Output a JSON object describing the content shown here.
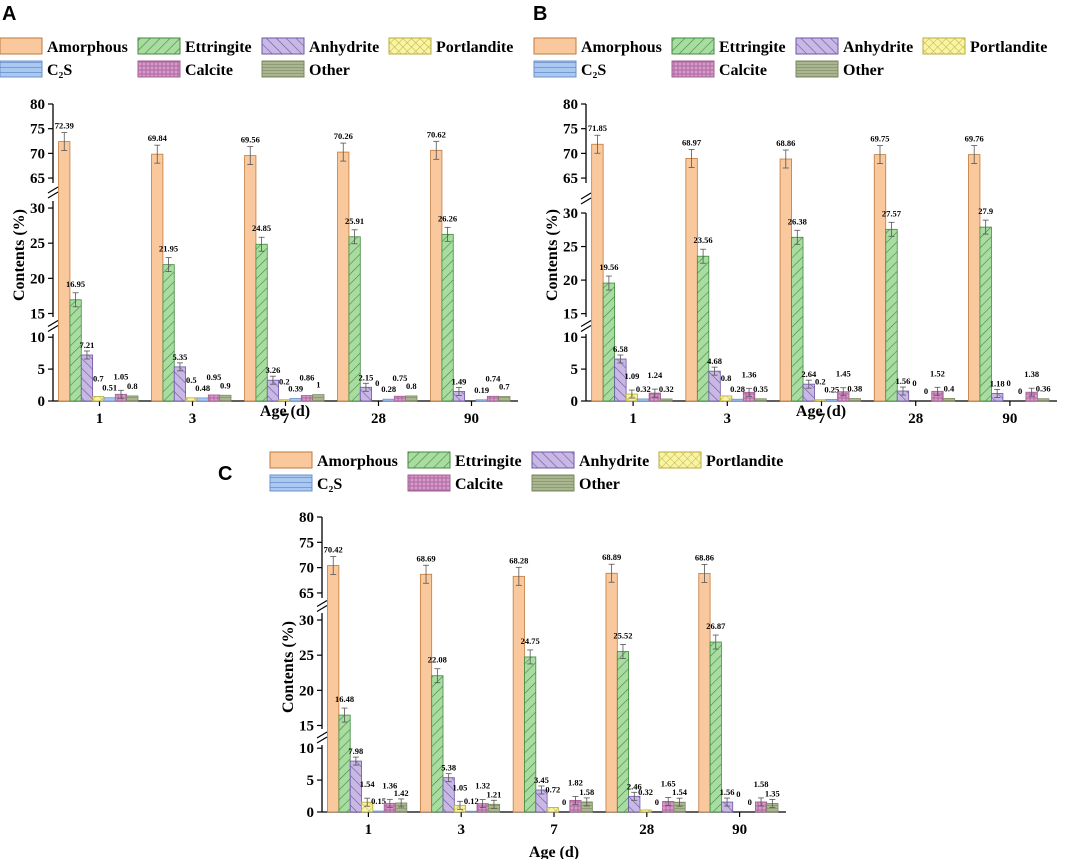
{
  "legend": {
    "labels": [
      "Amorphous",
      "Ettringite",
      "Anhydrite",
      "Portlandite",
      "C₂S",
      "Calcite",
      "Other"
    ]
  },
  "colors": {
    "Amorphous": "#f9c89d",
    "Ettringite": "#a9dca0",
    "Anhydrite": "#c9b7e4",
    "Portlandite": "#f9f4a4",
    "C2S": "#a9c8f2",
    "Calcite": "#d79ac9",
    "Other": "#a9b690"
  },
  "chart_data": [
    {
      "panel": "A",
      "type": "bar",
      "ylabel": "Contents (%)",
      "xlabel": "Age (d)",
      "categories": [
        "1",
        "3",
        "7",
        "28",
        "90"
      ],
      "y_segments": [
        [
          0,
          10.5
        ],
        [
          14.5,
          31
        ],
        [
          64,
          80
        ]
      ],
      "y_ticks": [
        "0",
        "5",
        "10",
        "15",
        "20",
        "25",
        "30",
        "65",
        "70",
        "75",
        "80"
      ],
      "series": [
        {
          "name": "Amorphous",
          "values": [
            72.39,
            69.84,
            69.56,
            70.26,
            70.62
          ],
          "labels": [
            "72.39",
            "69.84",
            "69.56",
            "70.26",
            "70.62"
          ]
        },
        {
          "name": "Ettringite",
          "values": [
            16.95,
            21.95,
            24.85,
            25.91,
            26.26
          ],
          "labels": [
            "16.95",
            "21.95",
            "24.85",
            "25.91",
            "26.26"
          ]
        },
        {
          "name": "Anhydrite",
          "values": [
            7.21,
            5.35,
            3.26,
            2.15,
            1.49
          ],
          "labels": [
            "7.21",
            "5.35",
            "3.26",
            "2.15",
            "1.49"
          ]
        },
        {
          "name": "Portlandite",
          "values": [
            0.7,
            0.5,
            0.2,
            0,
            0
          ],
          "labels": [
            "0.7",
            "0.5",
            "0.2",
            "0",
            ""
          ]
        },
        {
          "name": "C₂S",
          "values": [
            0.51,
            0.48,
            0.39,
            0.28,
            0.19
          ],
          "labels": [
            "0.51",
            "0.48",
            "0.39",
            "0.28",
            "0.19"
          ]
        },
        {
          "name": "Calcite",
          "values": [
            1.05,
            0.95,
            0.86,
            0.75,
            0.74
          ],
          "labels": [
            "1.05",
            "0.95",
            "0.86",
            "0.75",
            "0.74"
          ]
        },
        {
          "name": "Other",
          "values": [
            0.8,
            0.9,
            1,
            0.8,
            0.7
          ],
          "labels": [
            "0.8",
            "0.9",
            "1",
            "0.8",
            "0.7"
          ]
        }
      ]
    },
    {
      "panel": "B",
      "type": "bar",
      "ylabel": "Contents (%)",
      "xlabel": "Age (d)",
      "categories": [
        "1",
        "3",
        "7",
        "28",
        "90"
      ],
      "y_segments": [
        [
          0,
          10.5
        ],
        [
          14.5,
          30
        ],
        [
          64,
          80
        ]
      ],
      "y_ticks": [
        "0",
        "5",
        "10",
        "15",
        "20",
        "25",
        "30",
        "65",
        "70",
        "75",
        "80"
      ],
      "series": [
        {
          "name": "Amorphous",
          "values": [
            71.85,
            68.97,
            68.86,
            69.75,
            69.76
          ],
          "labels": [
            "71.85",
            "68.97",
            "68.86",
            "69.75",
            "69.76"
          ]
        },
        {
          "name": "Ettringite",
          "values": [
            19.56,
            23.56,
            26.38,
            27.57,
            27.9
          ],
          "labels": [
            "19.56",
            "23.56",
            "26.38",
            "27.57",
            "27.9"
          ]
        },
        {
          "name": "Anhydrite",
          "values": [
            6.58,
            4.68,
            2.64,
            1.56,
            1.18
          ],
          "labels": [
            "6.58",
            "4.68",
            "2.64",
            "1.56",
            "1.18"
          ]
        },
        {
          "name": "Portlandite",
          "values": [
            1.09,
            0.8,
            0.2,
            0,
            0
          ],
          "labels": [
            "1.09",
            "0.8",
            "0.2",
            "0",
            "0"
          ]
        },
        {
          "name": "C₂S",
          "values": [
            0.32,
            0.28,
            0.25,
            0,
            0
          ],
          "labels": [
            "0.32",
            "0.28",
            "0.25",
            "0",
            "0"
          ]
        },
        {
          "name": "Calcite",
          "values": [
            1.24,
            1.36,
            1.45,
            1.52,
            1.38
          ],
          "labels": [
            "1.24",
            "1.36",
            "1.45",
            "1.52",
            "1.38"
          ]
        },
        {
          "name": "Other",
          "values": [
            0.32,
            0.35,
            0.38,
            0.4,
            0.36
          ],
          "labels": [
            "0.32",
            "0.35",
            "0.38",
            "0.4",
            "0.36"
          ]
        }
      ]
    },
    {
      "panel": "C",
      "type": "bar",
      "ylabel": "Contents (%)",
      "xlabel": "Age (d)",
      "categories": [
        "1",
        "3",
        "7",
        "28",
        "90"
      ],
      "y_segments": [
        [
          0,
          10.5
        ],
        [
          14.5,
          31
        ],
        [
          64,
          80
        ]
      ],
      "y_ticks": [
        "0",
        "5",
        "10",
        "15",
        "20",
        "25",
        "30",
        "65",
        "70",
        "75",
        "80"
      ],
      "series": [
        {
          "name": "Amorphous",
          "values": [
            70.42,
            68.69,
            68.28,
            68.89,
            68.86
          ],
          "labels": [
            "70.42",
            "68.69",
            "68.28",
            "68.89",
            "68.86"
          ]
        },
        {
          "name": "Ettringite",
          "values": [
            16.48,
            22.08,
            24.75,
            25.52,
            26.87
          ],
          "labels": [
            "16.48",
            "22.08",
            "24.75",
            "25.52",
            "26.87"
          ]
        },
        {
          "name": "Anhydrite",
          "values": [
            7.98,
            5.38,
            3.45,
            2.46,
            1.56
          ],
          "labels": [
            "7.98",
            "5.38",
            "3.45",
            "2.46",
            "1.56"
          ]
        },
        {
          "name": "Portlandite",
          "values": [
            1.54,
            1.05,
            0.72,
            0.32,
            0
          ],
          "labels": [
            "1.54",
            "1.05",
            "0.72",
            "0.32",
            "0"
          ]
        },
        {
          "name": "C₂S",
          "values": [
            0.15,
            0.12,
            0,
            0,
            0
          ],
          "labels": [
            "0.15",
            "0.12",
            "0",
            "0",
            "0"
          ]
        },
        {
          "name": "Calcite",
          "values": [
            1.36,
            1.32,
            1.82,
            1.65,
            1.58
          ],
          "labels": [
            "1.36",
            "1.32",
            "1.82",
            "1.65",
            "1.58"
          ]
        },
        {
          "name": "Other",
          "values": [
            1.42,
            1.21,
            1.58,
            1.54,
            1.35
          ],
          "labels": [
            "1.42",
            "1.21",
            "1.58",
            "1.54",
            "1.35"
          ]
        }
      ]
    }
  ]
}
